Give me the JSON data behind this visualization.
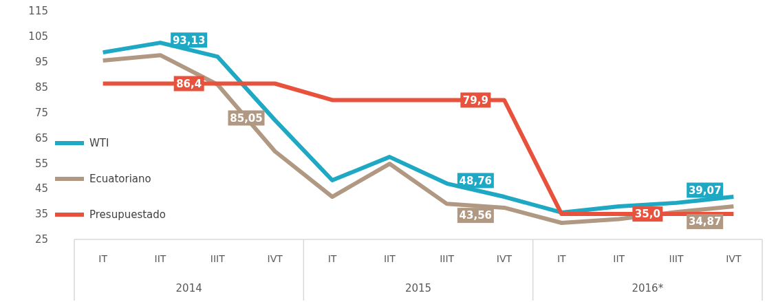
{
  "chart_data": {
    "type": "line",
    "categories": [
      "IT",
      "IIT",
      "IIIT",
      "IVT",
      "IT",
      "IIT",
      "IIIT",
      "IVT",
      "IT",
      "IIT",
      "IIIT",
      "IVT"
    ],
    "series": [
      {
        "name": "WTI",
        "color": "#1fa8c4",
        "values": [
          98.7,
          102.5,
          97,
          72,
          48.3,
          57.5,
          47,
          41.8,
          35.6,
          38,
          39.4,
          41.8
        ]
      },
      {
        "name": "Ecuatoriano",
        "color": "#b09882",
        "values": [
          95.5,
          97.6,
          86,
          59.7,
          41.8,
          54.8,
          39,
          37.5,
          31.5,
          33,
          35.8,
          38
        ]
      },
      {
        "name": "Presupuestado",
        "color": "#e8523c",
        "values": [
          86.4,
          86.4,
          86.4,
          86.4,
          79.9,
          79.9,
          79.9,
          79.9,
          35.0,
          35.0,
          35.0,
          35.0
        ]
      }
    ],
    "annotations": [
      "2014",
      "2015",
      "2016*",
      "93,13",
      "85,05",
      "86,4",
      "48,76",
      "43,56",
      "79,9",
      "39,07",
      "34,87",
      "35,0"
    ],
    "ylim": [
      25,
      115
    ],
    "yticks": [
      25,
      35,
      45,
      55,
      65,
      75,
      85,
      95,
      105,
      115
    ],
    "grid": false,
    "legend": "left",
    "marker": "none",
    "line_style": "solid"
  }
}
